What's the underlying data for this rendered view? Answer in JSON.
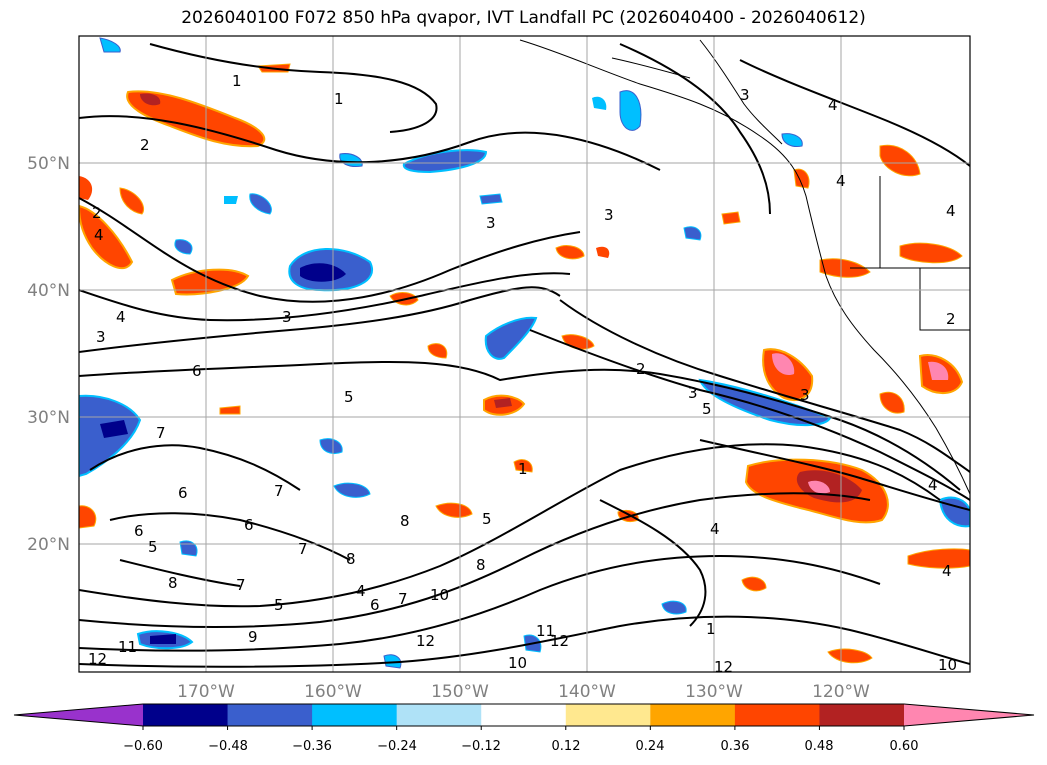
{
  "title": "2026040100 F072 850 hPa qvapor, IVT Landfall PC (2026040400 - 2026040612)",
  "map": {
    "lon_labels": [
      "170°W",
      "160°W",
      "150°W",
      "140°W",
      "130°W",
      "120°W"
    ],
    "lat_labels": [
      "50°N",
      "40°N",
      "30°N",
      "20°N"
    ],
    "contour_labels": [
      "1",
      "1",
      "2",
      "2",
      "4",
      "3",
      "4",
      "3",
      "3",
      "3",
      "3",
      "6",
      "5",
      "7",
      "6",
      "7",
      "6",
      "5",
      "8",
      "7",
      "6",
      "7",
      "8",
      "5",
      "4",
      "6",
      "7",
      "8",
      "10",
      "5",
      "8",
      "2",
      "3",
      "5",
      "9",
      "1",
      "4",
      "1",
      "11",
      "12",
      "12",
      "12",
      "10",
      "10",
      "11",
      "12",
      "4",
      "4",
      "4",
      "4",
      "2",
      "3",
      "4"
    ]
  },
  "colorbar": {
    "colors": [
      "#9932cc",
      "#00008b",
      "#3a5fcd",
      "#00bfff",
      "#afe2f7",
      "#ffffff",
      "#ffe88f",
      "#ffa500",
      "#ff4500",
      "#b22222",
      "#ff86b0"
    ],
    "tick_labels": [
      "−0.60",
      "−0.48",
      "−0.36",
      "−0.24",
      "−0.12",
      "0.12",
      "0.24",
      "0.36",
      "0.48",
      "0.60"
    ]
  }
}
